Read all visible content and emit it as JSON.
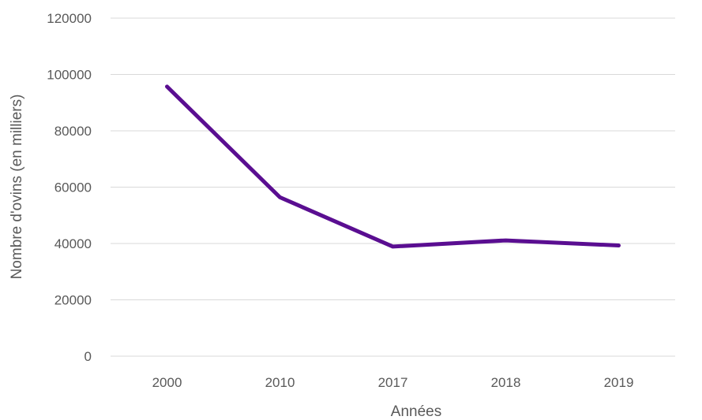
{
  "chart_data": {
    "type": "line",
    "categories": [
      "2000",
      "2010",
      "2017",
      "2018",
      "2019"
    ],
    "series": [
      {
        "values": [
          95700,
          56400,
          38900,
          41100,
          39300
        ]
      }
    ],
    "xlabel": "Années",
    "ylabel": "Nombre d'ovins (en milliers)",
    "ylim": [
      0,
      120000
    ],
    "yticks": [
      0,
      20000,
      40000,
      60000,
      80000,
      100000,
      120000
    ],
    "grid": true,
    "legend": "none"
  },
  "colors": {
    "series": "#5a0e91",
    "grid": "#d9d9d9",
    "text": "#595959"
  }
}
